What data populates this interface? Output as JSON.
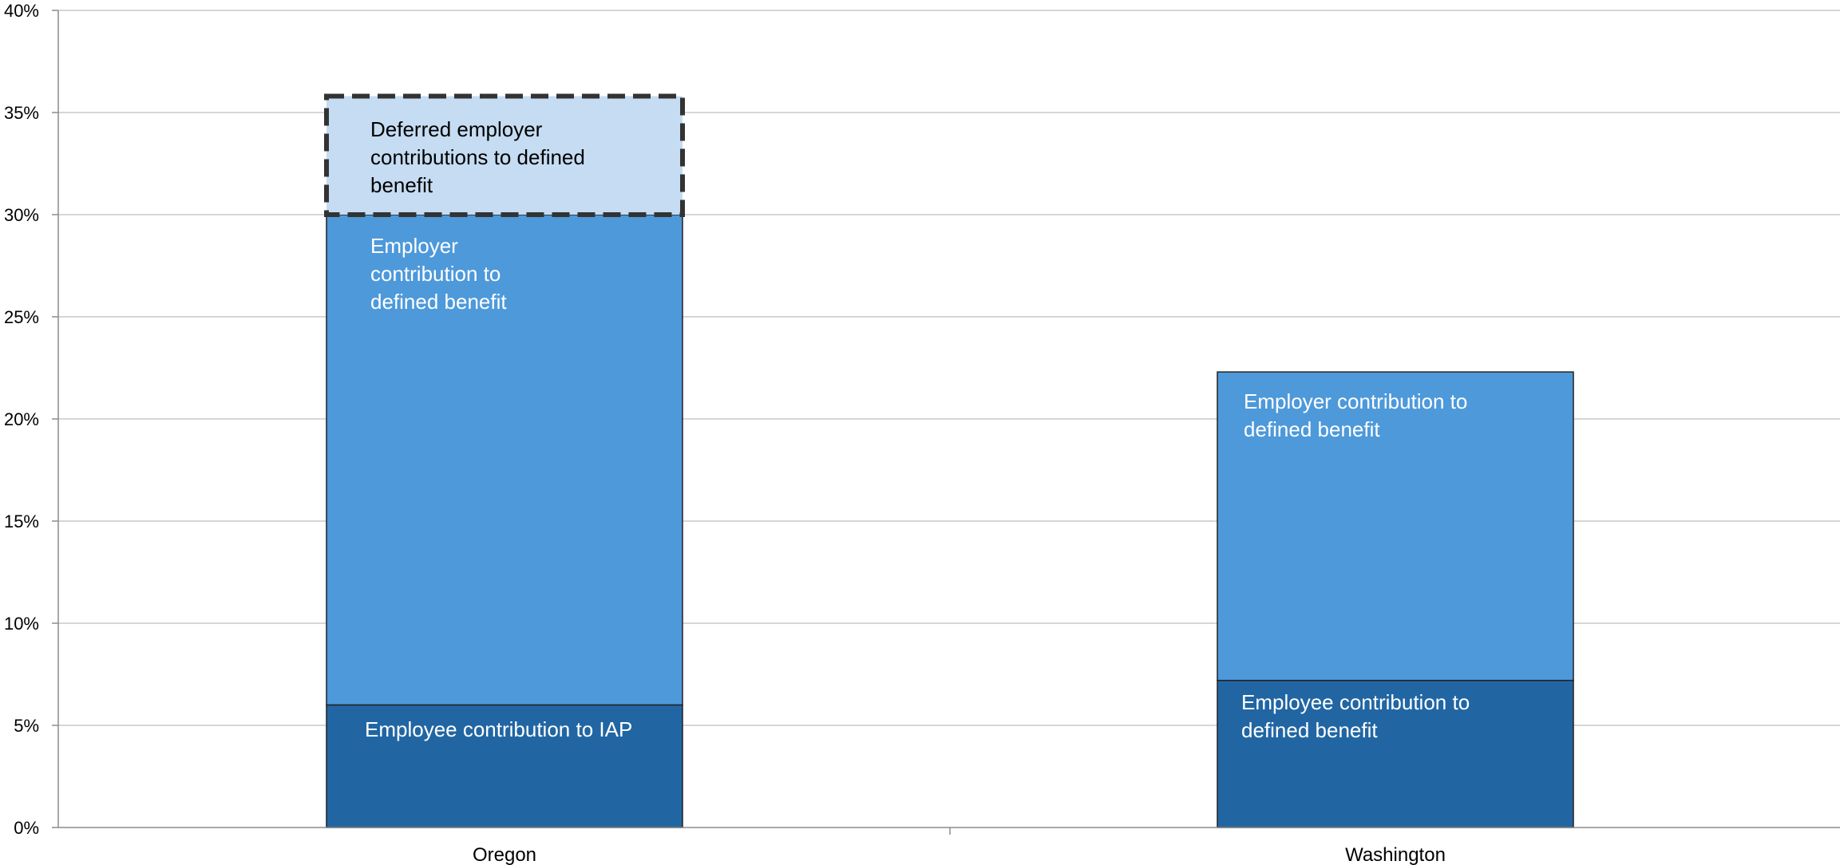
{
  "chart_data": {
    "type": "bar",
    "stacked": true,
    "categories": [
      "Oregon",
      "Washington"
    ],
    "series": [
      {
        "name": "Employee contribution",
        "color": "#2166a3",
        "label_color": "#ffffff",
        "values": [
          6,
          7.2
        ],
        "labels": [
          "Employee contribution to IAP",
          "Employee contribution to defined benefit"
        ]
      },
      {
        "name": "Employer contribution",
        "color": "#4d99da",
        "label_color": "#ffffff",
        "values": [
          24,
          15.1
        ],
        "labels": [
          "Employer contribution to defined benefit",
          "Employer contribution to defined benefit"
        ]
      },
      {
        "name": "Deferred employer contributions",
        "color": "#c5dcf2",
        "label_color": "#000000",
        "dashed_outline": true,
        "values": [
          5.8,
          0
        ],
        "labels": [
          "Deferred employer contributions to defined benefit",
          ""
        ]
      }
    ],
    "y_ticks": [
      "0%",
      "5%",
      "10%",
      "15%",
      "20%",
      "25%",
      "30%",
      "35%",
      "40%"
    ],
    "ylim": [
      0,
      40
    ],
    "grid": true,
    "title": "",
    "xlabel": "",
    "ylabel": ""
  }
}
